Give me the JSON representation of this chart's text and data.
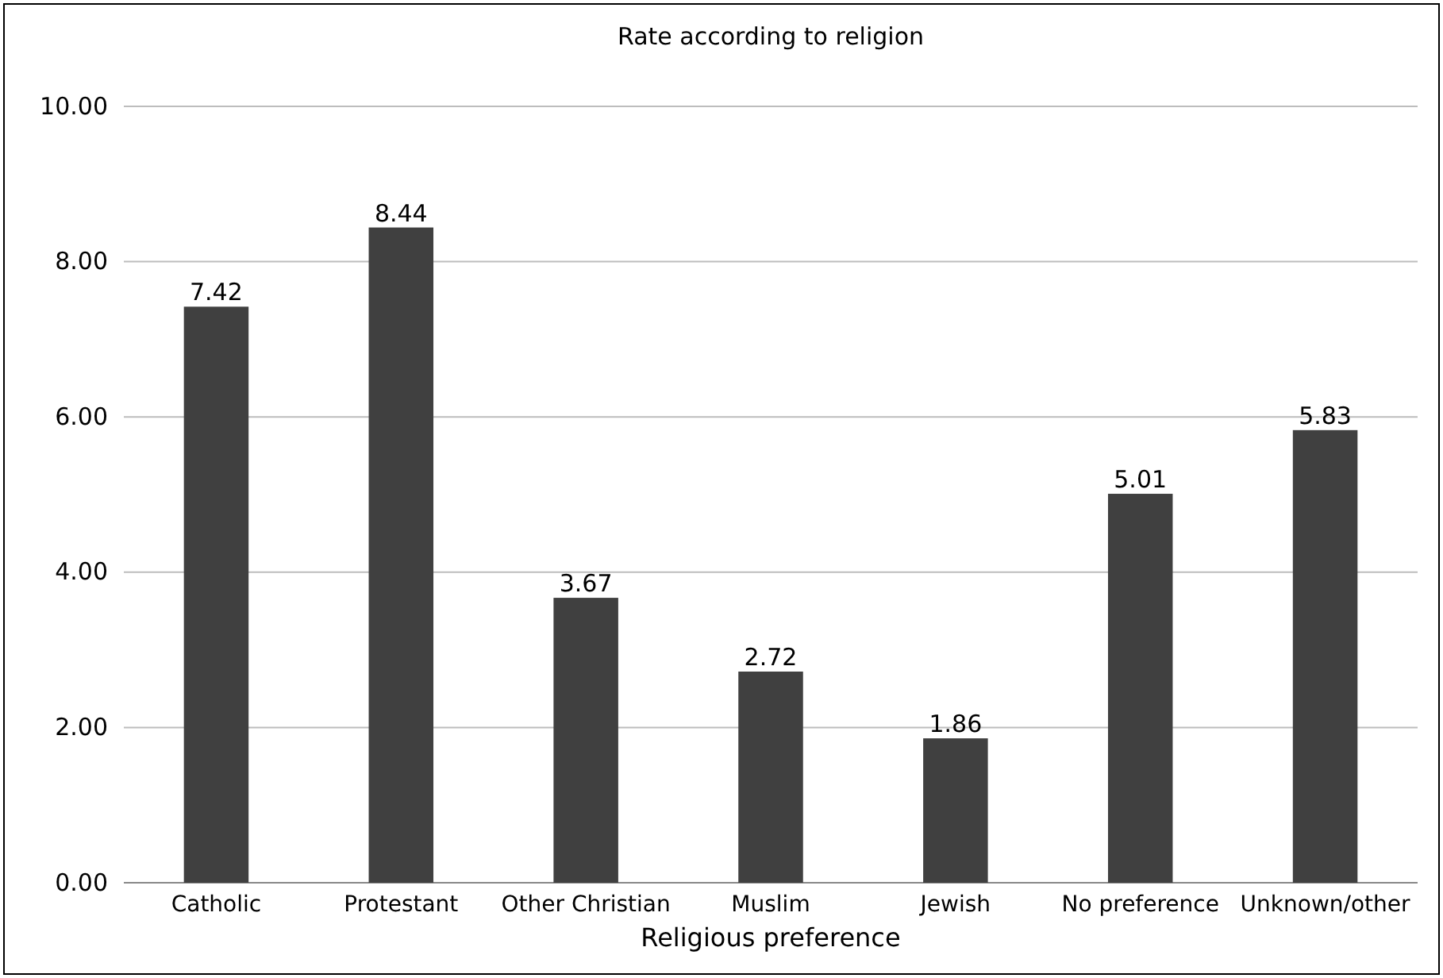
{
  "chart_data": {
    "type": "bar",
    "title": "Rate according to religion",
    "xlabel": "Religious preference",
    "categories": [
      "Catholic",
      "Protestant",
      "Other Christian",
      "Muslim",
      "Jewish",
      "No preference",
      "Unknown/other"
    ],
    "values": [
      7.42,
      8.44,
      3.67,
      2.72,
      1.86,
      5.01,
      5.83
    ],
    "color": "#404040",
    "ylim": [
      0,
      10
    ],
    "yticks": [
      {
        "value": 0,
        "label": "0.00"
      },
      {
        "value": 2,
        "label": "2.00"
      },
      {
        "value": 4,
        "label": "4.00"
      },
      {
        "value": 6,
        "label": "6.00"
      },
      {
        "value": 8,
        "label": "8.00"
      },
      {
        "value": 10,
        "label": "10.00"
      }
    ],
    "grid": "y",
    "data_labels": true
  }
}
